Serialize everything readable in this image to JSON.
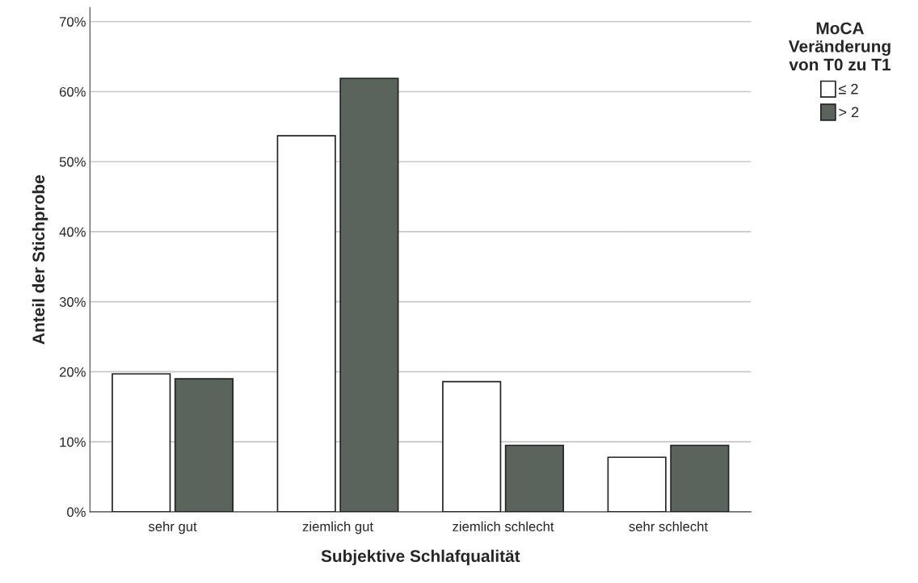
{
  "chart_data": {
    "type": "bar",
    "xlabel": "Subjektive Schlafqualität",
    "ylabel": "Anteil der Stichprobe",
    "legend_title": "MoCA\nVeränderung\nvon T0 zu T1",
    "categories": [
      "sehr gut",
      "ziemlich gut",
      "ziemlich schlecht",
      "sehr schlecht"
    ],
    "series": [
      {
        "name": "≤ 2",
        "color": "#ffffff",
        "values": [
          19.7,
          53.7,
          18.6,
          7.8
        ]
      },
      {
        "name": "> 2",
        "color": "#5a635c",
        "values": [
          19.0,
          61.9,
          9.5,
          9.5
        ]
      }
    ],
    "ylim": [
      0,
      72
    ],
    "yticks": [
      {
        "value": 0,
        "label": "0%"
      },
      {
        "value": 10,
        "label": "10%"
      },
      {
        "value": 20,
        "label": "20%"
      },
      {
        "value": 30,
        "label": "30%"
      },
      {
        "value": 40,
        "label": "40%"
      },
      {
        "value": 50,
        "label": "50%"
      },
      {
        "value": 60,
        "label": "60%"
      },
      {
        "value": 70,
        "label": "70%"
      }
    ],
    "grid": "y",
    "legend": "top right"
  }
}
